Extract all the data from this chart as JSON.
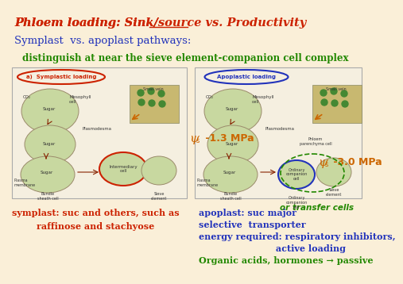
{
  "bg_color": "#faefd8",
  "title_text": "Phloem loading: Sink/source vs. Productivity",
  "title_color": "#cc2200",
  "title_fontsize": 10.5,
  "line2_text": "Symplast  vs. apoplast pathways:",
  "line2_color": "#2233bb",
  "line2_fontsize": 9.5,
  "line3_text": "distinguish at near the sieve element-companion cell complex",
  "line3_color": "#228800",
  "line3_fontsize": 8.5,
  "psi_s_left": "ψs -1.3 MPa",
  "psi_s_right": "ψs -3.0 MPa",
  "psi_color": "#cc6600",
  "psi_fontsize": 9,
  "or_transfer": "or transfer cells",
  "or_transfer_color": "#228800",
  "or_transfer_fontsize": 7.5,
  "symp_cap1": "symplast: suc and others, such as",
  "symp_cap2": "raffinose and stachyose",
  "symp_cap_color": "#cc2200",
  "symp_cap_fontsize": 8,
  "apo_cap1": "apoplast: suc major",
  "apo_cap2": "selective  transporter",
  "apo_cap3": "energy required: respiratory inhibitors,",
  "apo_cap4": "                         active loading",
  "apo_cap_color": "#2233bb",
  "apo_cap_fontsize": 8,
  "org_text": "Organic acids, hormones → passive",
  "org_color": "#228800",
  "org_fontsize": 8,
  "cell_fill": "#c8d8a0",
  "cell_edge": "#9B8B6B",
  "box_fill": "#f5efe0",
  "cross_fill": "#c8b870",
  "cross_edge": "#888866"
}
